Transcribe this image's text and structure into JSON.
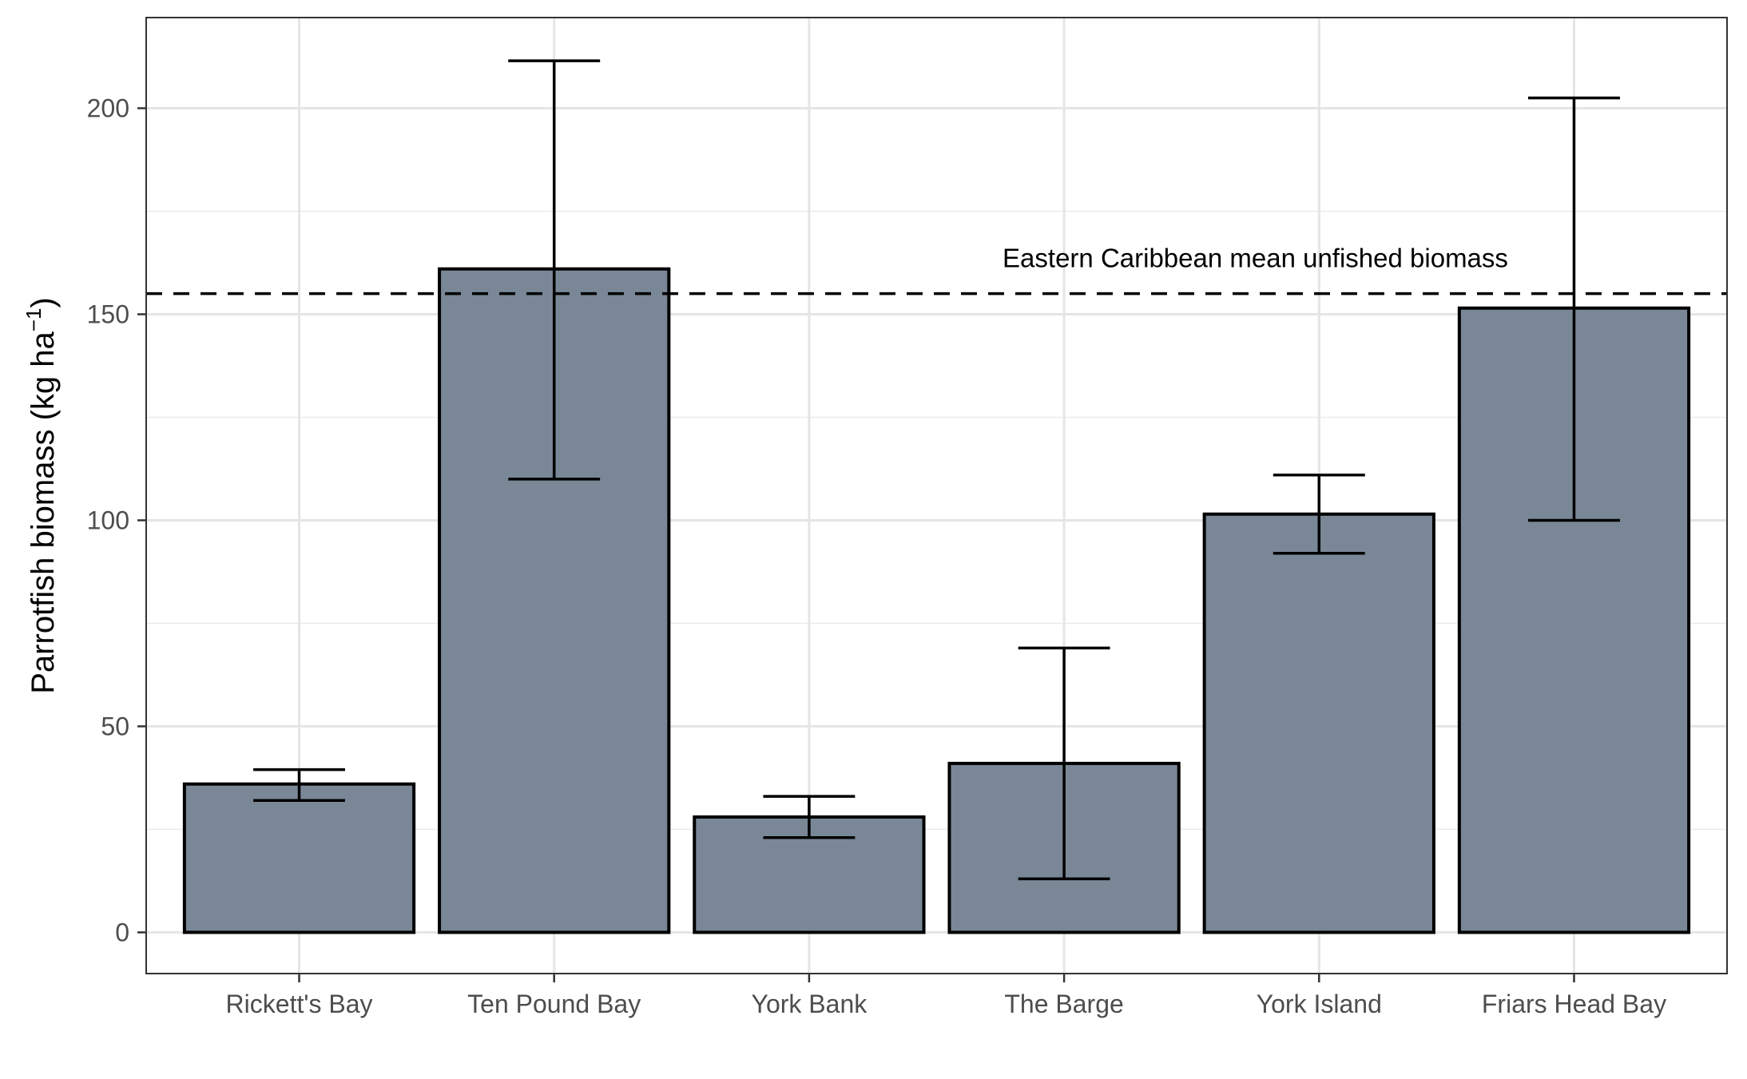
{
  "chart_data": {
    "type": "bar",
    "title": "",
    "xlabel": "",
    "ylabel": "Parrotfish biomass (kg ha",
    "ylabel_superscript": "−1",
    "ylabel_close": ")",
    "categories": [
      "Rickett's Bay",
      "Ten Pound Bay",
      "York Bank",
      "The Barge",
      "York Island",
      "Friars Head Bay"
    ],
    "series": [
      {
        "values": [
          36,
          161,
          28,
          41,
          101.5,
          151.5
        ],
        "error_low": [
          32,
          110,
          23,
          13,
          92,
          100
        ],
        "error_high": [
          39.5,
          211.5,
          33,
          69,
          111,
          202.5
        ]
      }
    ],
    "ylim": [
      -10,
      222
    ],
    "yticks": [
      0,
      50,
      100,
      150,
      200
    ],
    "reference_line": {
      "value": 155,
      "label": "Eastern Caribbean mean unfished biomass",
      "style": "dashed"
    },
    "bar_color": "#798796",
    "grid": true,
    "legend": "none"
  }
}
